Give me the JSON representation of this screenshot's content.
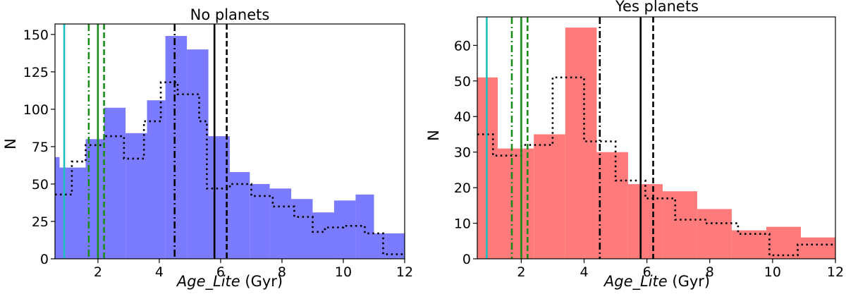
{
  "chart_data": [
    {
      "type": "bar",
      "title": "No planets",
      "xlabel_italic": "Age_Lite",
      "xlabel_unit": "(Gyr)",
      "ylabel": "N",
      "xlim": [
        0.6,
        12
      ],
      "ylim": [
        0,
        157
      ],
      "xticks": [
        2,
        4,
        6,
        8,
        10,
        12
      ],
      "yticks": [
        0,
        25,
        50,
        75,
        100,
        125,
        150
      ],
      "bar_color": "#7b7bff",
      "bins": [
        {
          "x0": 0.6,
          "x1": 0.75,
          "value": 68
        },
        {
          "x0": 0.75,
          "x1": 1.6,
          "value": 61
        },
        {
          "x0": 1.6,
          "x1": 2.2,
          "value": 80
        },
        {
          "x0": 2.2,
          "x1": 2.9,
          "value": 101
        },
        {
          "x0": 2.9,
          "x1": 3.6,
          "value": 84
        },
        {
          "x0": 3.6,
          "x1": 4.2,
          "value": 106
        },
        {
          "x0": 4.2,
          "x1": 4.9,
          "value": 149
        },
        {
          "x0": 4.9,
          "x1": 5.6,
          "value": 140
        },
        {
          "x0": 5.6,
          "x1": 6.3,
          "value": 82
        },
        {
          "x0": 6.3,
          "x1": 6.95,
          "value": 58
        },
        {
          "x0": 6.95,
          "x1": 7.6,
          "value": 50
        },
        {
          "x0": 7.6,
          "x1": 8.3,
          "value": 47
        },
        {
          "x0": 8.3,
          "x1": 9.0,
          "value": 40
        },
        {
          "x0": 9.0,
          "x1": 9.7,
          "value": 31
        },
        {
          "x0": 9.7,
          "x1": 10.4,
          "value": 39
        },
        {
          "x0": 10.4,
          "x1": 11.0,
          "value": 43
        },
        {
          "x0": 11.0,
          "x1": 11.4,
          "value": 17
        },
        {
          "x0": 11.4,
          "x1": 12.0,
          "value": 17
        }
      ],
      "dotted_step": [
        [
          0.6,
          43
        ],
        [
          1.15,
          43
        ],
        [
          1.15,
          65
        ],
        [
          1.6,
          65
        ],
        [
          1.6,
          76
        ],
        [
          2.2,
          76
        ],
        [
          2.2,
          82
        ],
        [
          2.85,
          82
        ],
        [
          2.85,
          67
        ],
        [
          3.5,
          67
        ],
        [
          3.5,
          92
        ],
        [
          4.05,
          92
        ],
        [
          4.05,
          118
        ],
        [
          4.6,
          118
        ],
        [
          4.6,
          110
        ],
        [
          5.3,
          110
        ],
        [
          5.3,
          92
        ],
        [
          5.55,
          92
        ],
        [
          5.55,
          47
        ],
        [
          6.3,
          47
        ],
        [
          6.3,
          50
        ],
        [
          7.0,
          50
        ],
        [
          7.0,
          42
        ],
        [
          7.7,
          42
        ],
        [
          7.7,
          35
        ],
        [
          8.4,
          35
        ],
        [
          8.4,
          28
        ],
        [
          9.0,
          28
        ],
        [
          9.0,
          18
        ],
        [
          9.4,
          18
        ],
        [
          9.4,
          21
        ],
        [
          10.0,
          21
        ],
        [
          10.0,
          22
        ],
        [
          10.7,
          22
        ],
        [
          10.7,
          17
        ],
        [
          11.3,
          17
        ],
        [
          11.3,
          3
        ],
        [
          12.0,
          3
        ]
      ],
      "vlines": [
        {
          "x": 0.9,
          "color": "#1fbfbf",
          "style": "solid"
        },
        {
          "x": 1.7,
          "color": "#1a8c1a",
          "style": "dashdot"
        },
        {
          "x": 2.0,
          "color": "#1a8c1a",
          "style": "solid"
        },
        {
          "x": 2.2,
          "color": "#1a8c1a",
          "style": "dashed"
        },
        {
          "x": 4.5,
          "color": "#000000",
          "style": "dashdot"
        },
        {
          "x": 5.8,
          "color": "#000000",
          "style": "solid"
        },
        {
          "x": 6.2,
          "color": "#000000",
          "style": "dashed"
        }
      ]
    },
    {
      "type": "bar",
      "title": "Yes planets",
      "xlabel_italic": "Age_Lite",
      "xlabel_unit": "(Gyr)",
      "ylabel": "N",
      "xlim": [
        0.6,
        12
      ],
      "ylim": [
        0,
        68
      ],
      "xticks": [
        2,
        4,
        6,
        8,
        10,
        12
      ],
      "yticks": [
        0,
        10,
        20,
        30,
        40,
        50,
        60
      ],
      "bar_color": "#ff7b7b",
      "bins": [
        {
          "x0": 0.6,
          "x1": 1.25,
          "value": 51
        },
        {
          "x0": 1.25,
          "x1": 2.4,
          "value": 31
        },
        {
          "x0": 2.4,
          "x1": 3.4,
          "value": 35
        },
        {
          "x0": 3.4,
          "x1": 4.4,
          "value": 65
        },
        {
          "x0": 4.4,
          "x1": 5.4,
          "value": 30
        },
        {
          "x0": 5.4,
          "x1": 6.5,
          "value": 21
        },
        {
          "x0": 6.5,
          "x1": 7.6,
          "value": 19
        },
        {
          "x0": 7.6,
          "x1": 8.7,
          "value": 14
        },
        {
          "x0": 8.7,
          "x1": 9.8,
          "value": 8
        },
        {
          "x0": 9.8,
          "x1": 10.9,
          "value": 9
        },
        {
          "x0": 10.9,
          "x1": 12.0,
          "value": 6
        }
      ],
      "dotted_step": [
        [
          0.6,
          35
        ],
        [
          1.1,
          35
        ],
        [
          1.1,
          29
        ],
        [
          2.0,
          29
        ],
        [
          2.0,
          32
        ],
        [
          3.0,
          32
        ],
        [
          3.0,
          51
        ],
        [
          4.0,
          51
        ],
        [
          4.0,
          33
        ],
        [
          5.0,
          33
        ],
        [
          5.0,
          22
        ],
        [
          5.95,
          22
        ],
        [
          5.95,
          17
        ],
        [
          6.9,
          17
        ],
        [
          6.9,
          11
        ],
        [
          7.9,
          11
        ],
        [
          7.9,
          10
        ],
        [
          8.9,
          10
        ],
        [
          8.9,
          7
        ],
        [
          9.9,
          7
        ],
        [
          9.9,
          1
        ],
        [
          10.8,
          1
        ],
        [
          10.8,
          4
        ],
        [
          12.0,
          4
        ]
      ],
      "vlines": [
        {
          "x": 0.9,
          "color": "#1fbfbf",
          "style": "solid"
        },
        {
          "x": 1.7,
          "color": "#1a8c1a",
          "style": "dashdot"
        },
        {
          "x": 2.0,
          "color": "#1a8c1a",
          "style": "solid"
        },
        {
          "x": 2.2,
          "color": "#1a8c1a",
          "style": "dashed"
        },
        {
          "x": 4.5,
          "color": "#000000",
          "style": "dashdot"
        },
        {
          "x": 5.8,
          "color": "#000000",
          "style": "solid"
        },
        {
          "x": 6.2,
          "color": "#000000",
          "style": "dashed"
        }
      ]
    }
  ]
}
